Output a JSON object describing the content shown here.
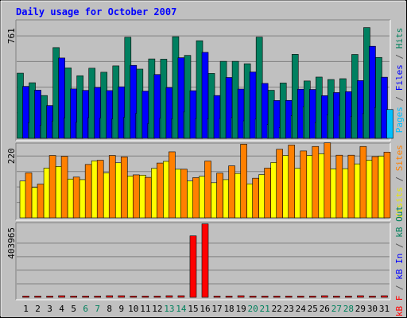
{
  "chart_data": {
    "type": "bar",
    "title": "Daily usage for October 2007",
    "categories": [
      "1",
      "2",
      "3",
      "4",
      "5",
      "6",
      "7",
      "8",
      "9",
      "10",
      "11",
      "12",
      "13",
      "14",
      "15",
      "16",
      "17",
      "18",
      "19",
      "20",
      "21",
      "22",
      "23",
      "24",
      "25",
      "26",
      "27",
      "28",
      "29",
      "30",
      "31"
    ],
    "weekend_days": [
      "6",
      "7",
      "13",
      "14",
      "20",
      "21",
      "27",
      "28"
    ],
    "panels": [
      {
        "id": "hits",
        "y_tick_label": "761",
        "y_tick_value": 761,
        "ylim": [
          0,
          880
        ],
        "side_label": [
          {
            "text": "Pages",
            "color": "#00c0ff"
          },
          {
            "text": " / ",
            "color": "#555555"
          },
          {
            "text": "Files",
            "color": "#0000ff"
          },
          {
            "text": " / ",
            "color": "#555555"
          },
          {
            "text": "Hits",
            "color": "#00805c"
          }
        ],
        "series": [
          {
            "name": "Hits",
            "color": "#008060",
            "values": [
              484,
              413,
              318,
              674,
              523,
              465,
              521,
              491,
              538,
              751,
              514,
              590,
              588,
              755,
              616,
              725,
              482,
              572,
              572,
              554,
              752,
              357,
              411,
              624,
              426,
              455,
              437,
              443,
              623,
              823,
              601
            ]
          },
          {
            "name": "Files",
            "color": "#0000ff",
            "values": [
              386,
              358,
              244,
              597,
              367,
              356,
              378,
              355,
              383,
              542,
              351,
              474,
              377,
              599,
              354,
              639,
              318,
              452,
              366,
              493,
              408,
              281,
              282,
              365,
              363,
              317,
              340,
              347,
              429,
              684,
              454
            ]
          },
          {
            "name": "Pages",
            "color": "#00c0ff",
            "values": [
              116,
              97,
              129,
              153,
              121,
              154,
              152,
              145,
              157,
              186,
              110,
              150,
              145,
              196,
              147,
              145,
              149,
              154,
              130,
              143,
              103,
              81,
              168,
              236,
              118,
              174,
              172,
              161,
              184,
              229,
              214
            ]
          }
        ]
      },
      {
        "id": "visits",
        "y_tick_label": "220",
        "y_tick_value": 220,
        "ylim": [
          0,
          266
        ],
        "side_label": [
          {
            "text": "Visits",
            "color": "#e8e800"
          },
          {
            "text": " / ",
            "color": "#555555"
          },
          {
            "text": "Sites",
            "color": "#ff8000"
          }
        ],
        "series": [
          {
            "name": "Visits",
            "color": "#ffff00",
            "values": [
              131,
              108,
              177,
              183,
              138,
              136,
              203,
              160,
              196,
              149,
              152,
              176,
              201,
              173,
              131,
              148,
              125,
              136,
              158,
              121,
              154,
              197,
              222,
              176,
              222,
              228,
              174,
              175,
              192,
              205,
              220
            ]
          },
          {
            "name": "Sites",
            "color": "#ff8000",
            "values": [
              160,
              120,
              222,
              219,
              145,
              190,
              205,
              222,
              217,
              153,
              144,
              195,
              235,
              173,
              143,
              202,
              159,
              185,
              262,
              141,
              177,
              244,
              259,
              238,
              254,
              267,
              223,
              223,
              254,
              218,
              234
            ]
          }
        ]
      },
      {
        "id": "kbytes",
        "y_tick_label": "403965",
        "y_tick_value": 403965,
        "ylim": [
          0,
          557000
        ],
        "side_label": [
          {
            "text": "kB F",
            "color": "#ff0000"
          },
          {
            "text": " / ",
            "color": "#555555"
          },
          {
            "text": "kB In",
            "color": "#0000ff"
          },
          {
            "text": " / ",
            "color": "#555555"
          },
          {
            "text": "kB Out",
            "color": "#00805c"
          }
        ],
        "series": [
          {
            "name": "kB F",
            "color": "#ff0000",
            "values": [
              9000,
              9000,
              9000,
              12000,
              9000,
              9000,
              9000,
              12000,
              12000,
              9000,
              9000,
              9000,
              12000,
              12000,
              458000,
              547000,
              9000,
              9000,
              12000,
              9000,
              9000,
              9000,
              9000,
              9000,
              9000,
              12000,
              9000,
              9000,
              12000,
              9000,
              12000
            ]
          }
        ]
      }
    ],
    "grid": true,
    "legend": "right-side vertical"
  }
}
